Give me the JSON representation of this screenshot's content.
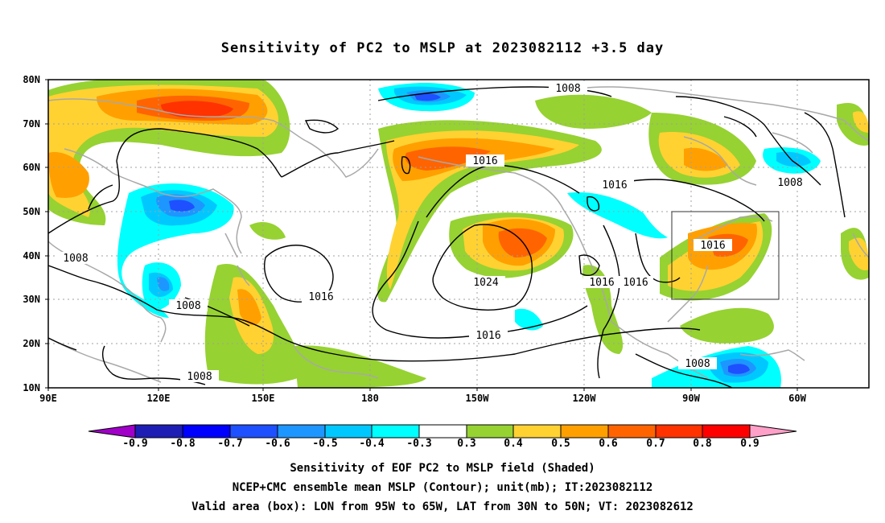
{
  "title": "Sensitivity of PC2 to MSLP at 2023082112 +3.5 day",
  "lat_labels": [
    "80N",
    "70N",
    "60N",
    "50N",
    "40N",
    "30N",
    "20N",
    "10N"
  ],
  "lon_labels": [
    "90E",
    "120E",
    "150E",
    "180",
    "150W",
    "120W",
    "90W",
    "60W"
  ],
  "contour_labels": [
    "1008",
    "1008",
    "1008",
    "1008",
    "1008",
    "1008",
    "1016",
    "1016",
    "1016",
    "1016",
    "1016",
    "1016",
    "1024"
  ],
  "colorbar": {
    "labels": [
      "-0.9",
      "-0.8",
      "-0.7",
      "-0.6",
      "-0.5",
      "-0.4",
      "-0.3",
      "0.3",
      "0.4",
      "0.5",
      "0.6",
      "0.7",
      "0.8",
      "0.9"
    ],
    "colors": [
      "#a000c8",
      "#1e1eb4",
      "#0000ff",
      "#1e50ff",
      "#1e96ff",
      "#00c8ff",
      "#00ffff",
      "#ffffff",
      "#96d232",
      "#ffd232",
      "#ffa000",
      "#ff6400",
      "#ff3200",
      "#ff0000",
      "#ffa0c8"
    ]
  },
  "box": {
    "lon_range": "95W to 65W",
    "lat_range": "30N to 50N"
  },
  "captions": [
    "Sensitivity of EOF PC2 to MSLP field (Shaded)",
    "NCEP+CMC ensemble mean MSLP (Contour); unit(mb); IT:2023082112",
    "Valid area (box): LON from 95W to 65W, LAT from 30N to 50N; VT: 2023082612"
  ]
}
